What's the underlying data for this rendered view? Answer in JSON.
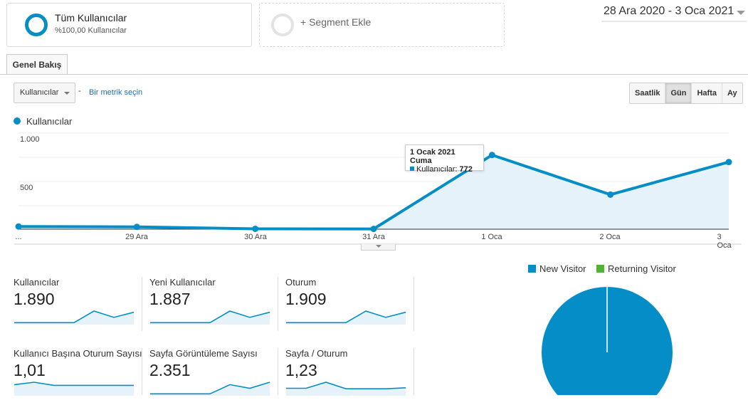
{
  "segments": {
    "active": {
      "title": "Tüm Kullanıcılar",
      "subtitle": "%100,00 Kullanıcılar",
      "ring_color": "#058dc7"
    },
    "add": {
      "label": "+ Segment Ekle",
      "ring_color": "#e3e3e3"
    }
  },
  "date_range": {
    "label": "28 Ara 2020 - 3 Oca 2021"
  },
  "tabs": [
    {
      "label": "Genel Bakış",
      "active": true
    }
  ],
  "controls": {
    "metric_select": "Kullanıcılar",
    "separator": "-",
    "compare_link": "Bir metrik seçin",
    "granularity": [
      {
        "label": "Saatlik",
        "active": false
      },
      {
        "label": "Gün",
        "active": true
      },
      {
        "label": "Hafta",
        "active": false
      },
      {
        "label": "Ay",
        "active": false
      }
    ]
  },
  "chart_legend": {
    "label": "Kullanıcılar",
    "color": "#058dc7"
  },
  "tooltip": {
    "title": "1 Ocak 2021 Cuma",
    "metric": "Kullanıcılar:",
    "value": "772"
  },
  "chart_data": [
    {
      "type": "area",
      "title": "",
      "xlabel": "",
      "ylabel": "",
      "categories": [
        "28 Ara",
        "29 Ara",
        "30 Ara",
        "31 Ara",
        "1 Oca",
        "2 Oca",
        "3 Oca"
      ],
      "x_tick_labels": [
        "...",
        "29 Ara",
        "30 Ara",
        "31 Ara",
        "1 Oca",
        "2 Oca",
        "3 Oca"
      ],
      "series": [
        {
          "name": "Kullanıcılar",
          "values": [
            28,
            24,
            4,
            3,
            772,
            360,
            699
          ],
          "color": "#058dc7"
        }
      ],
      "y_tick_labels": [
        "1.000",
        "500"
      ],
      "ylim": [
        0,
        1000
      ],
      "grid": true,
      "legend_position": "top-left"
    },
    {
      "type": "pie",
      "categories": [
        "New Visitor",
        "Returning Visitor"
      ],
      "values": [
        99.8,
        0.2
      ],
      "colors": [
        "#058dc7",
        "#50b432"
      ],
      "legend_position": "top"
    }
  ],
  "scorecards": [
    {
      "label": "Kullanıcılar",
      "value": "1.890",
      "spark": [
        4,
        4,
        4,
        4,
        100,
        48,
        90
      ]
    },
    {
      "label": "Yeni Kullanıcılar",
      "value": "1.887",
      "spark": [
        4,
        4,
        4,
        4,
        100,
        48,
        90
      ]
    },
    {
      "label": "Oturum",
      "value": "1.909",
      "spark": [
        4,
        4,
        4,
        4,
        100,
        48,
        90
      ]
    },
    {
      "label": "Kullanıcı Başına Oturum Sayısı",
      "value": "1,01",
      "spark": [
        80,
        100,
        74,
        74,
        74,
        74,
        74
      ]
    },
    {
      "label": "Sayfa Görüntüleme Sayısı",
      "value": "2.351",
      "spark": [
        4,
        4,
        4,
        4,
        80,
        50,
        100
      ]
    },
    {
      "label": "Sayfa / Oturum",
      "value": "1,23",
      "spark": [
        50,
        50,
        100,
        46,
        46,
        46,
        54
      ]
    }
  ]
}
